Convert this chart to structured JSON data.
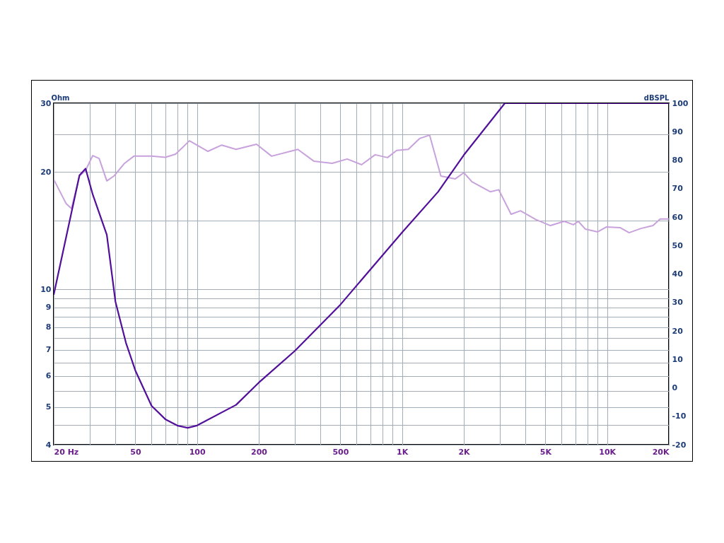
{
  "chart_data": {
    "type": "line",
    "ylabel": "Ohm",
    "y2label": "dBSPL",
    "log": "xy",
    "grid": true,
    "marker": "none",
    "line_style": "solid",
    "xlim": [
      20,
      20000
    ],
    "ylim": [
      4,
      30
    ],
    "y2lim": [
      -20,
      100
    ],
    "xticks": [
      {
        "value": 20,
        "label": "20 Hz"
      },
      {
        "value": 30,
        "label": null
      },
      {
        "value": 40,
        "label": null
      },
      50,
      {
        "value": 60,
        "label": null
      },
      {
        "value": 70,
        "label": null
      },
      {
        "value": 80,
        "label": null
      },
      {
        "value": 90,
        "label": null
      },
      100,
      200,
      {
        "value": 300,
        "label": null
      },
      {
        "value": 400,
        "label": null
      },
      500,
      {
        "value": 600,
        "label": null
      },
      {
        "value": 700,
        "label": null
      },
      {
        "value": 800,
        "label": null
      },
      {
        "value": 900,
        "label": null
      },
      {
        "value": 1000,
        "label": "1K"
      },
      {
        "value": 2000,
        "label": "2K"
      },
      {
        "value": 3000,
        "label": null
      },
      {
        "value": 4000,
        "label": null
      },
      {
        "value": 5000,
        "label": "5K"
      },
      {
        "value": 6000,
        "label": null
      },
      {
        "value": 7000,
        "label": null
      },
      {
        "value": 8000,
        "label": null
      },
      {
        "value": 9000,
        "label": null
      },
      {
        "value": 10000,
        "label": "10K"
      },
      {
        "value": 20000,
        "label": "20K"
      }
    ],
    "yticks": [
      4,
      {
        "value": 4.5,
        "label": null
      },
      5,
      {
        "value": 5.5,
        "label": null
      },
      6,
      {
        "value": 6.5,
        "label": null
      },
      7,
      {
        "value": 7.5,
        "label": null
      },
      8,
      {
        "value": 8.5,
        "label": null
      },
      9,
      {
        "value": 9.5,
        "label": null
      },
      10,
      {
        "value": 15,
        "label": null
      },
      20,
      {
        "value": 25,
        "label": null
      },
      30
    ],
    "y2ticks": [
      -20,
      -10,
      0,
      10,
      20,
      30,
      40,
      50,
      60,
      70,
      80,
      90,
      100
    ],
    "series": [
      {
        "axis": "y2",
        "color": "#c8a2dc",
        "x": [
          20,
          23,
          24.4,
          26.7,
          28.6,
          31,
          33.3,
          36.3,
          39.3,
          44.3,
          49.2,
          60,
          70,
          78.6,
          91.8,
          113,
          132,
          155,
          195,
          231,
          310,
          372,
          456,
          540,
          634,
          739,
          849,
          941,
          1072,
          1217,
          1362,
          1546,
          1814,
          2000,
          2192,
          2690,
          2960,
          3400,
          3780,
          4530,
          5290,
          6180,
          6850,
          7230,
          7820,
          9000,
          9900,
          11560,
          12800,
          14620,
          16740,
          18130,
          20000
        ],
        "values": [
          73.2,
          64.7,
          63,
          74.4,
          76.4,
          81.6,
          80.6,
          72.7,
          74.4,
          78.9,
          81.4,
          81.4,
          81,
          82.1,
          86.8,
          83.1,
          85.3,
          83.8,
          85.6,
          81.4,
          83.8,
          79.6,
          78.9,
          80.4,
          78.4,
          81.9,
          80.9,
          83.4,
          83.8,
          87.6,
          88.8,
          74.4,
          73.4,
          75.6,
          72.4,
          68.9,
          69.6,
          61,
          62.2,
          59,
          57,
          58.5,
          57.3,
          58.5,
          55.8,
          54.8,
          56.5,
          56.3,
          54.5,
          56,
          57,
          59.3,
          59.3
        ]
      },
      {
        "axis": "y",
        "color": "#52109a",
        "x": [
          20,
          26.7,
          28.6,
          31,
          36.3,
          40,
          45,
          50,
          60,
          70,
          80,
          90,
          100,
          155,
          200,
          300,
          500,
          1000,
          1500,
          2000,
          3170,
          20000
        ],
        "values": [
          9.7,
          19.6,
          20.4,
          17.5,
          13.8,
          9.3,
          7.3,
          6.2,
          5.03,
          4.65,
          4.48,
          4.42,
          4.48,
          5.06,
          5.77,
          6.96,
          9.14,
          14,
          17.8,
          22.1,
          30,
          30
        ]
      }
    ]
  }
}
